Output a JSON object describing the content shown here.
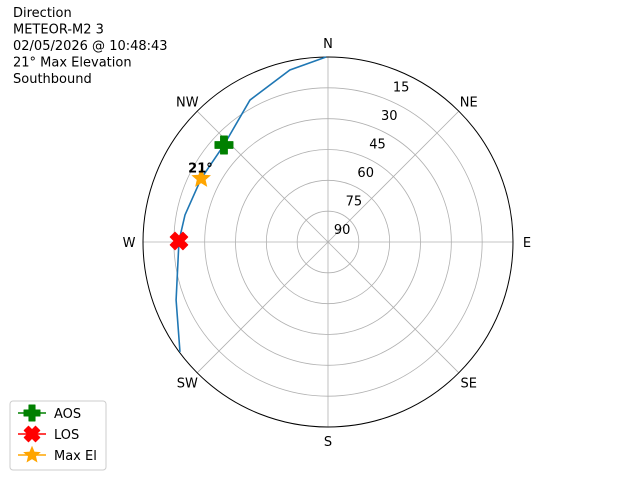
{
  "chart_data": {
    "type": "polar",
    "text_lines": [
      "Direction",
      "METEOR-M2 3",
      "02/05/2026 @ 10:48:43",
      "21° Max Elevation",
      "Southbound"
    ],
    "rlim": [
      90,
      0
    ],
    "rticks": [
      15,
      30,
      45,
      60,
      75,
      90
    ],
    "thetaticks": [
      {
        "value": 0,
        "label": "N"
      },
      {
        "value": 45,
        "label": "NE"
      },
      {
        "value": 90,
        "label": "E"
      },
      {
        "value": 135,
        "label": "SE"
      },
      {
        "value": 180,
        "label": "S"
      },
      {
        "value": 225,
        "label": "SW"
      },
      {
        "value": 270,
        "label": "W"
      },
      {
        "value": 315,
        "label": "NW"
      }
    ],
    "grid": true,
    "track": {
      "color": "#1f77b4",
      "azimuth": [
        359.4,
        347.5,
        331.2,
        313,
        296.6,
        280.7,
        270.4,
        249.1,
        233.4
      ],
      "elevation": [
        0,
        4.3,
        11.2,
        20.8,
        21,
        19.2,
        17.5,
        10.9,
        0.3
      ]
    },
    "markers": [
      {
        "name": "AOS",
        "color": "#008000",
        "symbol": "plus",
        "azimuth": 313,
        "elevation": 20.8
      },
      {
        "name": "LOS",
        "color": "#ff0000",
        "symbol": "x",
        "azimuth": 270.4,
        "elevation": 17.5
      },
      {
        "name": "Max El",
        "color": "#ffa500",
        "symbol": "star",
        "azimuth": 296.6,
        "elevation": 21,
        "value_label": "21°"
      }
    ],
    "legend": "lower left"
  }
}
